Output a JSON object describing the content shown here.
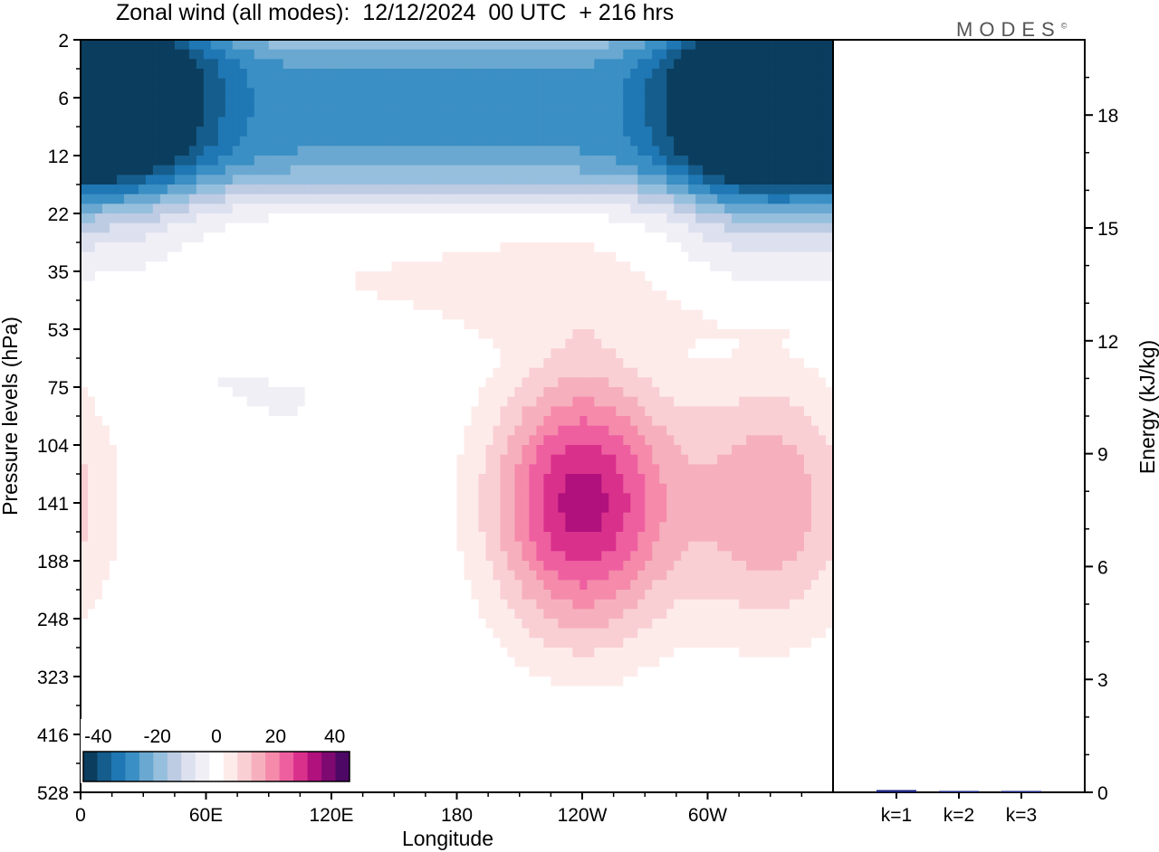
{
  "title": "Zonal wind (all modes):  12/12/2024  00 UTC  + 216 hrs",
  "brand": "MODES",
  "brand_mark": "©",
  "colors": {
    "palette": [
      "#0b3d5e",
      "#155d8c",
      "#1f77b4",
      "#3a8fc4",
      "#6aa8d1",
      "#96bfdd",
      "#bdcbe3",
      "#dde1ef",
      "#f1eff6",
      "#ffffff",
      "#fdebea",
      "#f9cfd3",
      "#f6b0bd",
      "#f58aaa",
      "#ee5fa0",
      "#d9308c",
      "#b0117c",
      "#7e0a71",
      "#4d0866"
    ],
    "bar": "#1a237e"
  },
  "chart_data": [
    {
      "type": "heatmap",
      "title": "Zonal wind (all modes):  12/12/2024  00 UTC  + 216 hrs",
      "xlabel": "Longitude",
      "ylabel": "Pressure levels (hPa)",
      "x_ticks": [
        "0",
        "60E",
        "120E",
        "180",
        "120W",
        "60W"
      ],
      "y_ticks": [
        "2",
        "6",
        "12",
        "22",
        "35",
        "53",
        "75",
        "104",
        "141",
        "188",
        "248",
        "323",
        "416",
        "528"
      ],
      "colorbar": {
        "ticks": [
          "-40",
          "-20",
          "0",
          "20",
          "40"
        ],
        "range": [
          -45,
          45
        ],
        "step": 5
      },
      "x_range_deg": [
        0,
        360
      ],
      "features": [
        {
          "desc": "stratospheric easterly band",
          "lon": [
            0,
            360
          ],
          "level_hpa": [
            2,
            16
          ],
          "u": -26
        },
        {
          "desc": "easterly maximum",
          "lon": 322,
          "level_hpa": 6,
          "u": -38
        },
        {
          "desc": "easterly maximum",
          "lon": 20,
          "level_hpa": 5,
          "u": -34
        },
        {
          "desc": "upper-level westerly jet core",
          "lon": 240,
          "level_hpa": 141,
          "u": 37
        },
        {
          "desc": "westerly jet",
          "lon": 330,
          "level_hpa": 141,
          "u": 19
        },
        {
          "desc": "westerly band",
          "lon": [
            0,
            360
          ],
          "level_hpa": [
            25,
            55
          ],
          "u": 5
        }
      ]
    },
    {
      "type": "bar",
      "ylabel": "Energy (kJ/kg)",
      "ylim": [
        0,
        20
      ],
      "y_ticks": [
        "0",
        "3",
        "6",
        "9",
        "12",
        "15",
        "18"
      ],
      "categories": [
        "k=1",
        "k=2",
        "k=3"
      ],
      "values": [
        0.06,
        0.03,
        0.02
      ]
    }
  ]
}
